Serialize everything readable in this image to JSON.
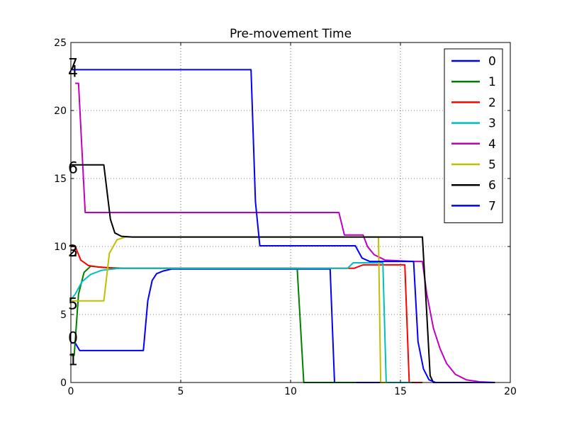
{
  "chart_data": {
    "type": "line",
    "title": "Pre-movement Time",
    "xlabel": "",
    "ylabel": "",
    "xlim": [
      0,
      20
    ],
    "ylim": [
      0,
      25
    ],
    "xticks": [
      "0",
      "5",
      "10",
      "15",
      "20"
    ],
    "yticks": [
      "0",
      "5",
      "10",
      "15",
      "20",
      "25"
    ],
    "grid": true,
    "legend_position": "top-right",
    "series": [
      {
        "name": "0",
        "color": "#0000ff",
        "label_at": [
          0.0,
          3.3
        ],
        "points": [
          [
            0,
            2.9
          ],
          [
            0.2,
            2.9
          ],
          [
            0.4,
            2.35
          ],
          [
            3.3,
            2.35
          ],
          [
            3.5,
            6.0
          ],
          [
            3.7,
            7.5
          ],
          [
            3.9,
            8.0
          ],
          [
            4.2,
            8.2
          ],
          [
            4.6,
            8.35
          ],
          [
            11.8,
            8.35
          ],
          [
            12.0,
            0
          ],
          [
            14.5,
            0
          ]
        ]
      },
      {
        "name": "1",
        "color": "#008000",
        "label_at": [
          0.0,
          1.7
        ],
        "points": [
          [
            0,
            2.0
          ],
          [
            0.15,
            2.0
          ],
          [
            0.35,
            6.5
          ],
          [
            0.6,
            8.1
          ],
          [
            0.9,
            8.55
          ],
          [
            1.5,
            8.45
          ],
          [
            2.5,
            8.4
          ],
          [
            10.3,
            8.4
          ],
          [
            10.6,
            0
          ],
          [
            13.0,
            0
          ]
        ]
      },
      {
        "name": "2",
        "color": "#ff0000",
        "label_at": [
          0.0,
          9.7
        ],
        "points": [
          [
            0,
            10.0
          ],
          [
            0.2,
            10.0
          ],
          [
            0.45,
            9.0
          ],
          [
            0.8,
            8.6
          ],
          [
            1.2,
            8.5
          ],
          [
            2.0,
            8.4
          ],
          [
            12.9,
            8.4
          ],
          [
            13.3,
            8.65
          ],
          [
            15.2,
            8.65
          ],
          [
            15.4,
            0
          ],
          [
            16.0,
            0
          ]
        ]
      },
      {
        "name": "3",
        "color": "#00bfbf",
        "label_at": [
          0.0,
          9.7
        ],
        "points": [
          [
            0,
            6.1
          ],
          [
            0.2,
            6.5
          ],
          [
            0.5,
            7.4
          ],
          [
            0.9,
            7.95
          ],
          [
            1.4,
            8.25
          ],
          [
            2.2,
            8.4
          ],
          [
            12.6,
            8.4
          ],
          [
            12.85,
            8.8
          ],
          [
            14.2,
            8.8
          ],
          [
            14.35,
            0
          ],
          [
            15.5,
            0
          ]
        ]
      },
      {
        "name": "4",
        "color": "#bf00bf",
        "label_at": [
          0.0,
          22.9
        ],
        "points": [
          [
            0.2,
            22
          ],
          [
            0.35,
            22
          ],
          [
            0.65,
            12.5
          ],
          [
            12.2,
            12.5
          ],
          [
            12.45,
            10.85
          ],
          [
            13.3,
            10.85
          ],
          [
            13.5,
            10.0
          ],
          [
            13.8,
            9.4
          ],
          [
            14.3,
            9.0
          ],
          [
            15.6,
            8.9
          ],
          [
            16.0,
            8.9
          ],
          [
            16.2,
            6.5
          ],
          [
            16.5,
            4.0
          ],
          [
            16.8,
            2.5
          ],
          [
            17.1,
            1.4
          ],
          [
            17.5,
            0.6
          ],
          [
            18.0,
            0.2
          ],
          [
            18.6,
            0.05
          ],
          [
            19.3,
            0
          ]
        ]
      },
      {
        "name": "5",
        "color": "#bfbf00",
        "label_at": [
          0.0,
          5.8
        ],
        "points": [
          [
            0,
            6.0
          ],
          [
            1.5,
            6.0
          ],
          [
            1.75,
            9.5
          ],
          [
            2.1,
            10.5
          ],
          [
            2.5,
            10.7
          ],
          [
            14.0,
            10.7
          ],
          [
            14.1,
            0
          ],
          [
            14.4,
            0
          ]
        ]
      },
      {
        "name": "6",
        "color": "#000000",
        "label_at": [
          0.0,
          15.8
        ],
        "points": [
          [
            0,
            16.0
          ],
          [
            1.5,
            16.0
          ],
          [
            1.8,
            12.0
          ],
          [
            2.0,
            11.0
          ],
          [
            2.3,
            10.75
          ],
          [
            2.8,
            10.7
          ],
          [
            16.0,
            10.7
          ],
          [
            16.2,
            5.0
          ],
          [
            16.35,
            0.5
          ],
          [
            16.5,
            0
          ],
          [
            19.3,
            0
          ]
        ]
      },
      {
        "name": "7",
        "color": "#0000ff",
        "label_at": [
          0.0,
          23.4
        ],
        "points": [
          [
            0,
            23.0
          ],
          [
            8.2,
            23.0
          ],
          [
            8.4,
            13.3
          ],
          [
            8.6,
            10.05
          ],
          [
            12.95,
            10.05
          ],
          [
            13.25,
            9.15
          ],
          [
            13.6,
            8.9
          ],
          [
            15.3,
            8.9
          ],
          [
            15.6,
            8.9
          ],
          [
            15.8,
            3.0
          ],
          [
            16.05,
            1.0
          ],
          [
            16.3,
            0.2
          ],
          [
            16.6,
            0
          ],
          [
            19.3,
            0
          ]
        ]
      }
    ]
  }
}
